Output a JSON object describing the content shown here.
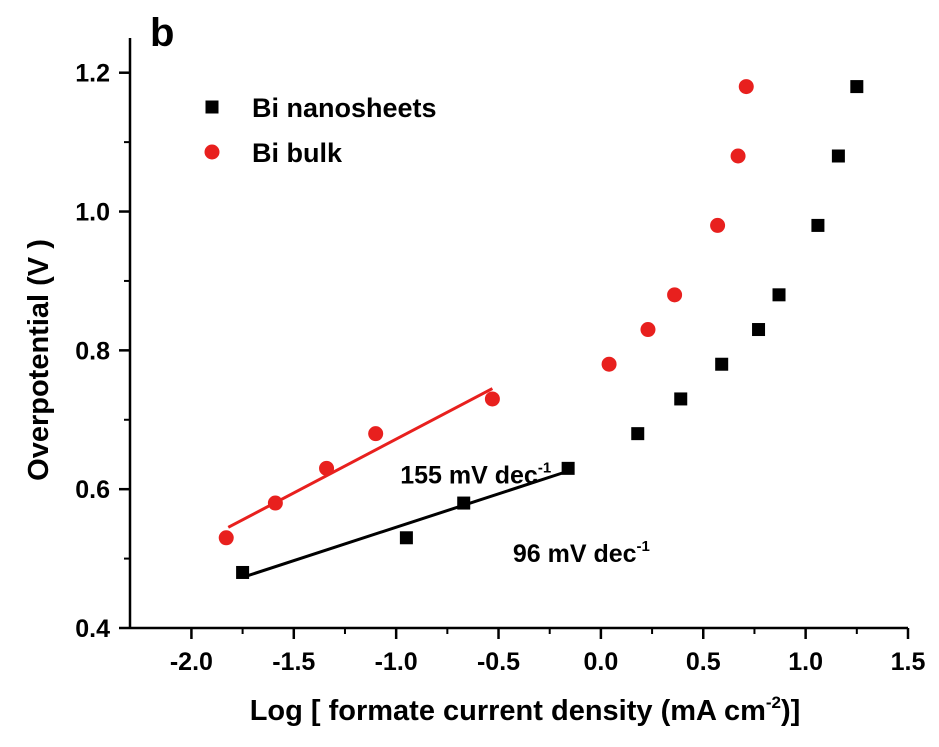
{
  "chart_data": {
    "type": "scatter",
    "panel_label": "b",
    "xlabel": "Log [ formate current density (mA cm",
    "xlabel_sup": "-2",
    "xlabel_tail": ")]",
    "ylabel": "Overpotential (V )",
    "xlim": [
      -2.3,
      1.5
    ],
    "ylim": [
      0.4,
      1.25
    ],
    "x_ticks": [
      -2.0,
      -1.5,
      -1.0,
      -0.5,
      0.0,
      0.5,
      1.0,
      1.5
    ],
    "x_tick_labels": [
      "-2.0",
      "-1.5",
      "-1.0",
      "-0.5",
      "0.0",
      "0.5",
      "1.0",
      "1.5"
    ],
    "y_ticks": [
      0.4,
      0.6,
      0.8,
      1.0,
      1.2
    ],
    "y_tick_labels": [
      "0.4",
      "0.6",
      "0.8",
      "1.0",
      "1.2"
    ],
    "legend_position": "top-left",
    "grid": false,
    "series": [
      {
        "name": "Bi nanosheets",
        "marker": "square",
        "color": "#000000",
        "x": [
          -1.75,
          -0.95,
          -0.67,
          -0.16,
          0.18,
          0.39,
          0.59,
          0.77,
          0.87,
          1.06,
          1.16,
          1.25
        ],
        "y": [
          0.48,
          0.53,
          0.58,
          0.63,
          0.68,
          0.73,
          0.78,
          0.83,
          0.88,
          0.98,
          1.08,
          1.18
        ]
      },
      {
        "name": "Bi bulk",
        "marker": "circle",
        "color": "#e8201e",
        "x": [
          -1.83,
          -1.59,
          -1.34,
          -1.1,
          -0.53,
          0.04,
          0.23,
          0.36,
          0.57,
          0.67,
          0.71
        ],
        "y": [
          0.53,
          0.58,
          0.63,
          0.68,
          0.73,
          0.78,
          0.83,
          0.88,
          0.98,
          1.08,
          1.18
        ]
      }
    ],
    "fit_lines": [
      {
        "color": "#e8201e",
        "x": [
          -1.82,
          -0.53
        ],
        "y": [
          0.545,
          0.745
        ]
      },
      {
        "color": "#000000",
        "x": [
          -1.75,
          -0.16
        ],
        "y": [
          0.473,
          0.626
        ]
      }
    ],
    "annotations": [
      {
        "text": "155 mV dec",
        "sup": "-1",
        "x": -0.98,
        "y": 0.608
      },
      {
        "text": "96 mV dec",
        "sup": "-1",
        "x": -0.43,
        "y": 0.495
      }
    ]
  }
}
